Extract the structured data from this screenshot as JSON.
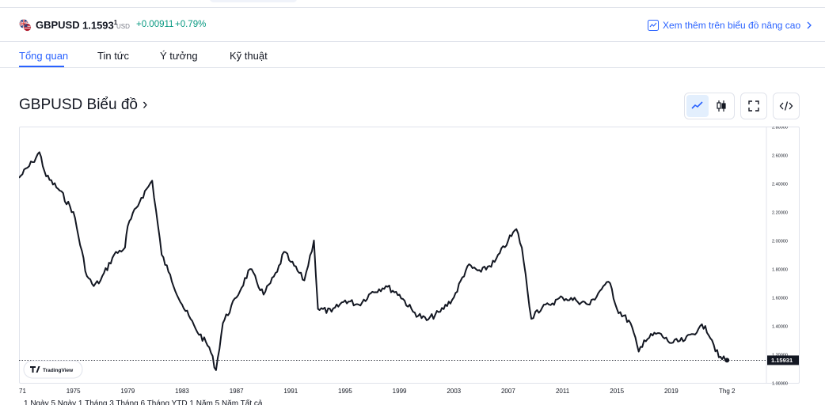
{
  "symbol": {
    "name": "GBPUSD",
    "price_main": "1.1593",
    "price_sup": "1",
    "currency": "USD",
    "change": "+0.00911",
    "change_pct": "+0.79%",
    "up_color": "#089981",
    "advanced_link": "Xem thêm trên biểu đồ nâng cao"
  },
  "tabs": [
    {
      "label": "Tổng quan",
      "active": true
    },
    {
      "label": "Tin tức",
      "active": false
    },
    {
      "label": "Ý tưởng",
      "active": false
    },
    {
      "label": "Kỹ thuật",
      "active": false
    }
  ],
  "chart_title": "GBPUSD Biểu đồ",
  "chart_title_arrow": "›",
  "toolbar": {
    "icons": [
      "line-chart-icon",
      "candlestick-icon",
      "fullscreen-icon",
      "embed-code-icon"
    ],
    "selected": "line-chart-icon"
  },
  "watermark": "TradingView",
  "chart_data": {
    "type": "line",
    "series": [
      {
        "x": [
          1971,
          1972,
          1972.5,
          1973,
          1974,
          1975,
          1976,
          1976.5,
          1977,
          1978,
          1978.8,
          1979,
          1980,
          1980.8,
          1981.5,
          1982,
          1983,
          1984,
          1985,
          1985.5,
          1986,
          1987,
          1988,
          1989,
          1990,
          1990.5,
          1991,
          1992,
          1992.7,
          1993,
          1994,
          1995,
          1996,
          1997,
          1998,
          1999,
          2000,
          2001,
          2002,
          2003,
          2004,
          2005,
          2006,
          2007,
          2007.6,
          2008,
          2008.7,
          2009,
          2010,
          2011,
          2012,
          2013,
          2014,
          2014.5,
          2015,
          2016,
          2016.6,
          2017,
          2018,
          2019,
          2020,
          2021,
          2021.5,
          2022,
          2022.5,
          2023.1
        ],
        "y": [
          2.44,
          2.55,
          2.62,
          2.45,
          2.35,
          2.2,
          1.75,
          1.68,
          1.72,
          1.9,
          1.95,
          2.1,
          2.3,
          2.42,
          1.9,
          1.78,
          1.55,
          1.38,
          1.25,
          1.09,
          1.42,
          1.6,
          1.8,
          1.62,
          1.78,
          1.92,
          1.85,
          1.72,
          2.0,
          1.52,
          1.5,
          1.58,
          1.55,
          1.64,
          1.68,
          1.62,
          1.5,
          1.44,
          1.5,
          1.6,
          1.82,
          1.78,
          1.85,
          2.0,
          2.08,
          1.95,
          1.45,
          1.5,
          1.55,
          1.6,
          1.58,
          1.55,
          1.68,
          1.7,
          1.52,
          1.42,
          1.22,
          1.3,
          1.35,
          1.28,
          1.3,
          1.38,
          1.4,
          1.3,
          1.18,
          1.15931
        ]
      }
    ],
    "x_ticks": [
      "71",
      "1975",
      "1979",
      "1983",
      "1987",
      "1991",
      "1995",
      "1999",
      "2003",
      "2007",
      "2011",
      "2015",
      "2019",
      "Thg 2"
    ],
    "x_tick_values": [
      1971,
      1975,
      1979,
      1983,
      1987,
      1991,
      1995,
      1999,
      2003,
      2007,
      2011,
      2015,
      2019,
      2023.1
    ],
    "y_ticks": [
      "2.80000",
      "2.60000",
      "2.40000",
      "2.20000",
      "2.00000",
      "1.80000",
      "1.60000",
      "1.40000",
      "1.20000",
      "1.00000"
    ],
    "y_tick_values": [
      2.8,
      2.6,
      2.4,
      2.2,
      2.0,
      1.8,
      1.6,
      1.4,
      1.2,
      1.0
    ],
    "ylim": [
      0.995,
      2.8
    ],
    "xlim": [
      1971,
      2026
    ],
    "last_value_label": "1.15931",
    "last_value": 1.15931,
    "grid": false
  },
  "bottom_cut_text": "1 Ngày 5 Ngày 1 Tháng 3 Tháng 6 Tháng YTD 1 Năm 5 Năm Tất cả"
}
